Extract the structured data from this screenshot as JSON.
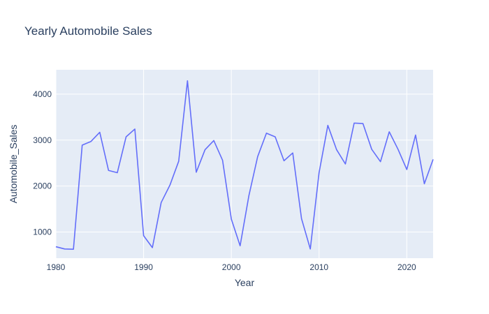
{
  "chart_data": {
    "type": "line",
    "title": "Yearly Automobile Sales",
    "xlabel": "Year",
    "ylabel": "Automobile_Sales",
    "xlim": [
      1980,
      2023
    ],
    "ylim": [
      430,
      4530
    ],
    "x_ticks": [
      1980,
      1990,
      2000,
      2010,
      2020
    ],
    "y_ticks": [
      1000,
      2000,
      3000,
      4000
    ],
    "grid": true,
    "line_color": "#636efa",
    "plot_bg": "#e5ecf6",
    "x": [
      1980,
      1981,
      1982,
      1983,
      1984,
      1985,
      1986,
      1987,
      1988,
      1989,
      1990,
      1991,
      1992,
      1993,
      1994,
      1995,
      1996,
      1997,
      1998,
      1999,
      2000,
      2001,
      2002,
      2003,
      2004,
      2005,
      2006,
      2007,
      2008,
      2009,
      2010,
      2011,
      2012,
      2013,
      2014,
      2015,
      2016,
      2017,
      2018,
      2019,
      2020,
      2021,
      2022,
      2023
    ],
    "values": [
      680,
      630,
      625,
      2890,
      2970,
      3170,
      2340,
      2290,
      3070,
      3240,
      920,
      660,
      1640,
      2020,
      2540,
      4290,
      2300,
      2790,
      2990,
      2560,
      1280,
      700,
      1790,
      2640,
      3150,
      3070,
      2550,
      2720,
      1290,
      630,
      2290,
      3320,
      2790,
      2480,
      3370,
      3360,
      2800,
      2530,
      3180,
      2800,
      2360,
      3110,
      2050,
      2580
    ]
  }
}
